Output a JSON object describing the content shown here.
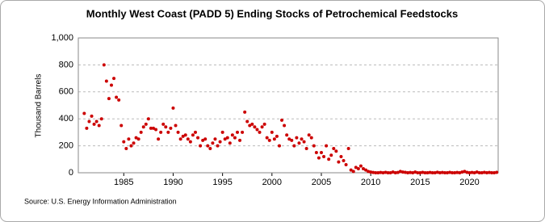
{
  "chart_data": {
    "type": "scatter",
    "title": "Monthly West Coast (PADD 5) Ending Stocks of Petrochemical Feedstocks",
    "y_label": "Thousand Barrels",
    "source": "Source: U.S. Energy Information Administration",
    "color": "#cc0000",
    "grid": true,
    "xlim": [
      1980.4,
      2022.9
    ],
    "xticks": [
      1985,
      1990,
      1995,
      2000,
      2005,
      2010,
      2015,
      2020
    ],
    "ylim": [
      0,
      1000
    ],
    "yticks": [
      0,
      200,
      400,
      600,
      800,
      {
        "value": 1000,
        "label": "1,000"
      }
    ],
    "x": [
      1981,
      1981.25,
      1981.5,
      1981.75,
      1982,
      1982.25,
      1982.5,
      1982.75,
      1983,
      1983.25,
      1983.5,
      1983.75,
      1984,
      1984.25,
      1984.5,
      1984.75,
      1985,
      1985.25,
      1985.5,
      1985.75,
      1986,
      1986.25,
      1986.5,
      1986.75,
      1987,
      1987.25,
      1987.5,
      1987.75,
      1988,
      1988.25,
      1988.5,
      1988.75,
      1989,
      1989.25,
      1989.5,
      1989.75,
      1990,
      1990.25,
      1990.5,
      1990.75,
      1991,
      1991.25,
      1991.5,
      1991.75,
      1992,
      1992.25,
      1992.5,
      1992.75,
      1993,
      1993.25,
      1993.5,
      1993.75,
      1994,
      1994.25,
      1994.5,
      1994.75,
      1995,
      1995.25,
      1995.5,
      1995.75,
      1996,
      1996.25,
      1996.5,
      1996.75,
      1997,
      1997.25,
      1997.5,
      1997.75,
      1998,
      1998.25,
      1998.5,
      1998.75,
      1999,
      1999.25,
      1999.5,
      1999.75,
      2000,
      2000.25,
      2000.5,
      2000.75,
      2001,
      2001.25,
      2001.5,
      2001.75,
      2002,
      2002.25,
      2002.5,
      2002.75,
      2003,
      2003.25,
      2003.5,
      2003.75,
      2004,
      2004.25,
      2004.5,
      2004.75,
      2005,
      2005.25,
      2005.5,
      2005.75,
      2006,
      2006.25,
      2006.5,
      2006.75,
      2007,
      2007.25,
      2007.5,
      2007.75,
      2008,
      2008.25,
      2008.5,
      2008.75,
      2009,
      2009.25,
      2009.5,
      2009.75,
      2010,
      2010.25,
      2010.5,
      2010.75,
      2011,
      2011.25,
      2011.5,
      2011.75,
      2012,
      2012.25,
      2012.5,
      2012.75,
      2013,
      2013.25,
      2013.5,
      2013.75,
      2014,
      2014.25,
      2014.5,
      2014.75,
      2015,
      2015.25,
      2015.5,
      2015.75,
      2016,
      2016.25,
      2016.5,
      2016.75,
      2017,
      2017.25,
      2017.5,
      2017.75,
      2018,
      2018.25,
      2018.5,
      2018.75,
      2019,
      2019.25,
      2019.5,
      2019.75,
      2020,
      2020.25,
      2020.5,
      2020.75,
      2021,
      2021.25,
      2021.5,
      2021.75,
      2022,
      2022.25,
      2022.5,
      2022.75
    ],
    "values": [
      440,
      330,
      380,
      420,
      360,
      380,
      350,
      400,
      800,
      680,
      550,
      650,
      700,
      560,
      540,
      350,
      230,
      180,
      250,
      200,
      220,
      260,
      250,
      300,
      340,
      360,
      400,
      330,
      330,
      320,
      250,
      300,
      360,
      340,
      300,
      330,
      480,
      350,
      300,
      250,
      270,
      280,
      250,
      230,
      280,
      300,
      260,
      200,
      240,
      250,
      200,
      180,
      220,
      250,
      200,
      230,
      300,
      250,
      260,
      220,
      280,
      260,
      300,
      240,
      300,
      450,
      380,
      350,
      360,
      340,
      320,
      300,
      340,
      360,
      260,
      240,
      300,
      250,
      270,
      200,
      390,
      350,
      280,
      250,
      240,
      200,
      260,
      220,
      250,
      230,
      180,
      280,
      260,
      200,
      150,
      110,
      150,
      120,
      200,
      100,
      130,
      180,
      160,
      80,
      120,
      90,
      60,
      180,
      20,
      10,
      40,
      30,
      50,
      30,
      20,
      10,
      5,
      2,
      0,
      0,
      2,
      0,
      3,
      0,
      0,
      5,
      0,
      2,
      10,
      5,
      3,
      0,
      2,
      0,
      5,
      0,
      0,
      3,
      0,
      0,
      2,
      0,
      0,
      4,
      0,
      2,
      0,
      0,
      3,
      0,
      0,
      2,
      0,
      5,
      10,
      3,
      0,
      2,
      0,
      5,
      0,
      0,
      3,
      0,
      2,
      0,
      0,
      3
    ]
  }
}
